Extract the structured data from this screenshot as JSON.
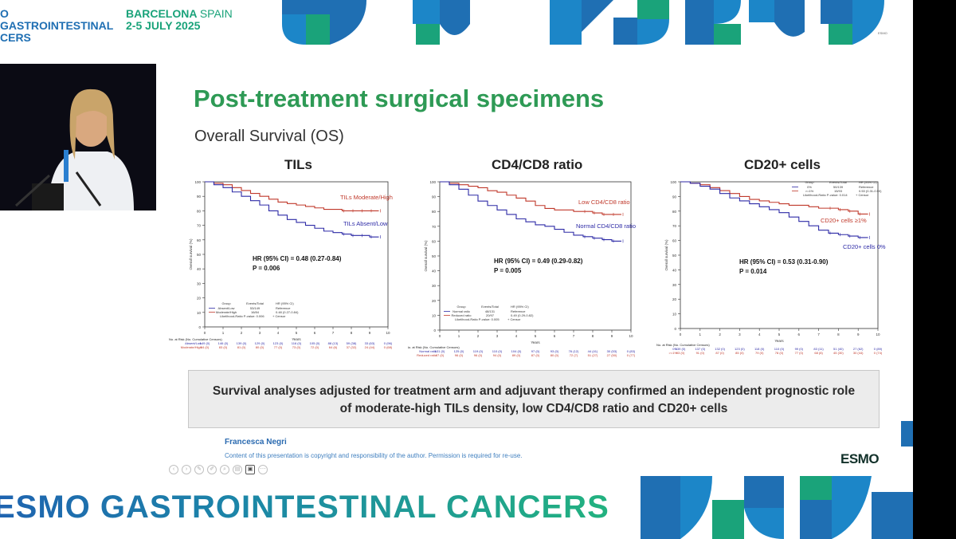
{
  "conference": {
    "name": "ESMO GASTROINTESTINAL CANCERS",
    "name_top_visible": "O GASTROINTESTINAL",
    "name_bottom_visible": "CERS",
    "place_bold": "BARCELONA",
    "place_light": "SPAIN",
    "dates": "2-5 JULY 2025"
  },
  "logo": {
    "text": "ESMO"
  },
  "slide": {
    "title": "Post-treatment surgical specimens",
    "subtitle": "Overall Survival (OS)",
    "summary": "Survival analyses adjusted for treatment arm and adjuvant therapy confirmed an independent prognostic role of moderate-high TILs density, low CD4/CD8 ratio and CD20+ cells",
    "author": "Francesca Negri",
    "copyright": "Content of this presentation is copyright and responsibility of the author. Permission is required for re-use."
  },
  "toolbar": {
    "items": [
      "back-icon",
      "forward-icon",
      "pen-icon",
      "highlighter-icon",
      "zoom-icon",
      "slides-icon",
      "video-icon",
      "more-icon"
    ],
    "glyphs": [
      "‹",
      "›",
      "✎",
      "✐",
      "⌕",
      "▤",
      "▣",
      "⋯"
    ]
  },
  "colors": {
    "green_title": "#2e9a55",
    "blue_curve": "#2d2aa6",
    "red_curve": "#c0392b",
    "esmo_blue": "#1f6fb3",
    "esmo_green": "#1aa37a"
  },
  "common": {
    "ylabel": "Overall survival (%)",
    "xlabel": "Years",
    "risk_header": "No. at Risk (No. Cumulative Censors)",
    "censor": "+ Censor"
  },
  "chart_data": [
    {
      "type": "line",
      "title": "TILs",
      "xlabel": "Years",
      "ylabel": "Overall survival (%)",
      "xlim": [
        0,
        10
      ],
      "ylim": [
        0,
        100
      ],
      "x_ticks": [
        0,
        1,
        2,
        3,
        4,
        5,
        6,
        7,
        8,
        9,
        10
      ],
      "y_ticks": [
        0,
        10,
        20,
        30,
        40,
        50,
        60,
        70,
        80,
        90,
        100
      ],
      "series": [
        {
          "name": "TILs Moderate/High",
          "color": "#c0392b",
          "x": [
            0,
            0.5,
            1,
            1.5,
            2,
            2.5,
            3,
            3.5,
            4,
            4.5,
            5,
            5.5,
            6,
            6.5,
            7,
            7.5,
            8,
            8.5,
            9,
            9.5
          ],
          "y": [
            100,
            99,
            98,
            96,
            94,
            92,
            90,
            88,
            86,
            85,
            84,
            83,
            82,
            81,
            81,
            80,
            80,
            80,
            80,
            80
          ]
        },
        {
          "name": "TILs Absent/Low",
          "color": "#2d2aa6",
          "x": [
            0,
            0.5,
            1,
            1.5,
            2,
            2.5,
            3,
            3.5,
            4,
            4.5,
            5,
            5.5,
            6,
            6.5,
            7,
            7.5,
            8,
            8.5,
            9,
            9.5
          ],
          "y": [
            100,
            98,
            96,
            93,
            90,
            87,
            84,
            80,
            77,
            74,
            72,
            70,
            68,
            66,
            65,
            64,
            63,
            63,
            62,
            62
          ]
        }
      ],
      "labels": {
        "red": "TILs Moderate/High",
        "blue": "TILs Absent/Low"
      },
      "hr_text": "HR (95% CI) = 0.48 (0.27-0.84)",
      "p_text": "P = 0.006",
      "legend": {
        "headers": [
          "Group",
          "Events/Total",
          "HR (95% CI)"
        ],
        "rows": [
          [
            "Absent/Low",
            "53/149",
            "Reference"
          ],
          [
            "Moderate/High",
            "16/84",
            "0.48 (0.27-0.84)"
          ]
        ],
        "footer": "Likelihood-Ratio P-value: 0.006"
      },
      "risk": {
        "rows": [
          {
            "label": "Absent/Low",
            "values": [
              "149 (0)",
              "146 (0)",
              "139 (0)",
              "129 (0)",
              "123 (0)",
              "116 (0)",
              "105 (0)",
              "88 (13)",
              "59 (38)",
              "33 (63)",
              "0 (96)"
            ]
          },
          {
            "label": "Moderate/High",
            "values": [
              "84 (0)",
              "83 (0)",
              "81 (0)",
              "80 (0)",
              "77 (0)",
              "73 (0)",
              "72 (0)",
              "64 (6)",
              "37 (32)",
              "24 (44)",
              "0 (68)"
            ]
          }
        ]
      }
    },
    {
      "type": "line",
      "title": "CD4/CD8 ratio",
      "xlabel": "Years",
      "ylabel": "Overall survival (%)",
      "xlim": [
        0,
        10
      ],
      "ylim": [
        0,
        100
      ],
      "x_ticks": [
        0,
        1,
        2,
        3,
        4,
        5,
        6,
        7,
        8,
        9,
        10
      ],
      "y_ticks": [
        0,
        10,
        20,
        30,
        40,
        50,
        60,
        70,
        80,
        90,
        100
      ],
      "series": [
        {
          "name": "Low CD4/CD8 ratio",
          "color": "#c0392b",
          "x": [
            0,
            0.5,
            1,
            1.5,
            2,
            2.5,
            3,
            3.5,
            4,
            4.5,
            5,
            5.5,
            6,
            6.5,
            7,
            7.5,
            8,
            8.5,
            9,
            9.5
          ],
          "y": [
            100,
            99,
            98,
            97,
            96,
            94,
            93,
            91,
            89,
            87,
            84,
            82,
            81,
            81,
            80,
            80,
            79,
            78,
            78,
            78
          ]
        },
        {
          "name": "Normal CD4/CD8 ratio",
          "color": "#2d2aa6",
          "x": [
            0,
            0.5,
            1,
            1.5,
            2,
            2.5,
            3,
            3.5,
            4,
            4.5,
            5,
            5.5,
            6,
            6.5,
            7,
            7.5,
            8,
            8.5,
            9,
            9.5
          ],
          "y": [
            100,
            98,
            95,
            91,
            87,
            84,
            81,
            78,
            75,
            73,
            71,
            70,
            68,
            66,
            64,
            63,
            62,
            61,
            60,
            60
          ]
        }
      ],
      "labels": {
        "red": "Low CD4/CD8 ratio",
        "blue": "Normal CD4/CD8 ratio"
      },
      "hr_text": "HR (95% CI) = 0.49 (0.29-0.82)",
      "p_text": "P = 0.005",
      "legend": {
        "headers": [
          "Group",
          "Events/Total",
          "HR (95% CI)"
        ],
        "rows": [
          [
            "Normal ratio",
            "48/131",
            "Reference"
          ],
          [
            "Reduced ratio",
            "20/97",
            "0.49 (0.29-0.82)"
          ]
        ],
        "footer": "Likelihood-Ratio P-value: 0.005"
      },
      "risk": {
        "rows": [
          {
            "label": "Normal ratio",
            "values": [
              "131 (0)",
              "125 (0)",
              "119 (0)",
              "110 (0)",
              "104 (0)",
              "97 (0)",
              "93 (0)",
              "76 (12)",
              "44 (41)",
              "30 (53)",
              "0 (83)"
            ]
          },
          {
            "label": "Reduced ratio",
            "values": [
              "97 (0)",
              "96 (0)",
              "96 (0)",
              "94 (0)",
              "89 (0)",
              "87 (0)",
              "80 (0)",
              "72 (7)",
              "51 (27)",
              "27 (50)",
              "0 (77)"
            ]
          }
        ]
      }
    },
    {
      "type": "line",
      "title": "CD20+ cells",
      "xlabel": "Years",
      "ylabel": "Overall survival (%)",
      "xlim": [
        0,
        10
      ],
      "ylim": [
        0,
        100
      ],
      "x_ticks": [
        0,
        1,
        2,
        3,
        4,
        5,
        6,
        7,
        8,
        9,
        10
      ],
      "y_ticks": [
        0,
        10,
        20,
        30,
        40,
        50,
        60,
        70,
        80,
        90,
        100
      ],
      "series": [
        {
          "name": "CD20+ cells ≥1%",
          "color": "#c0392b",
          "x": [
            0,
            0.5,
            1,
            1.5,
            2,
            2.5,
            3,
            3.5,
            4,
            4.5,
            5,
            5.5,
            6,
            6.5,
            7,
            7.5,
            8,
            8.5,
            9,
            9.5
          ],
          "y": [
            100,
            99,
            98,
            96,
            94,
            92,
            90,
            88,
            87,
            86,
            85,
            84,
            84,
            83,
            82,
            82,
            81,
            80,
            78,
            78
          ]
        },
        {
          "name": "CD20+ cells 0%",
          "color": "#2d2aa6",
          "x": [
            0,
            0.5,
            1,
            1.5,
            2,
            2.5,
            3,
            3.5,
            4,
            4.5,
            5,
            5.5,
            6,
            6.5,
            7,
            7.5,
            8,
            8.5,
            9,
            9.5
          ],
          "y": [
            100,
            99,
            97,
            95,
            92,
            89,
            87,
            85,
            83,
            81,
            79,
            76,
            73,
            70,
            67,
            65,
            64,
            63,
            62,
            62
          ]
        }
      ],
      "labels": {
        "red": "CD20+ cells ≥1%",
        "blue": "CD20+ cells 0%"
      },
      "hr_text": "HR (95% CI) = 0.53 (0.31-0.90)",
      "p_text": "P = 0.014",
      "legend": {
        "headers": [
          "Group",
          "Events/Total",
          "HR (95% CI)"
        ],
        "rows": [
          [
            "0%",
            "50/139",
            "Reference"
          ],
          [
            ">=1%",
            "15/93",
            "0.53 (0.31-0.90)"
          ]
        ],
        "footer": "Likelihood-Ratio P-value: 0.014"
      },
      "risk": {
        "rows": [
          {
            "label": "0%",
            "values": [
              "139 (0)",
              "137 (0)",
              "132 (0)",
              "123 (0)",
              "118 (0)",
              "110 (0)",
              "99 (0)",
              "83 (11)",
              "51 (40)",
              "27 (62)",
              "0 (89)"
            ]
          },
          {
            "label": ">=1%",
            "values": [
              "93 (0)",
              "91 (0)",
              "87 (0)",
              "85 (0)",
              "79 (0)",
              "78 (0)",
              "77 (0)",
              "68 (8)",
              "45 (30)",
              "30 (44)",
              "0 (74)"
            ]
          }
        ]
      }
    }
  ]
}
